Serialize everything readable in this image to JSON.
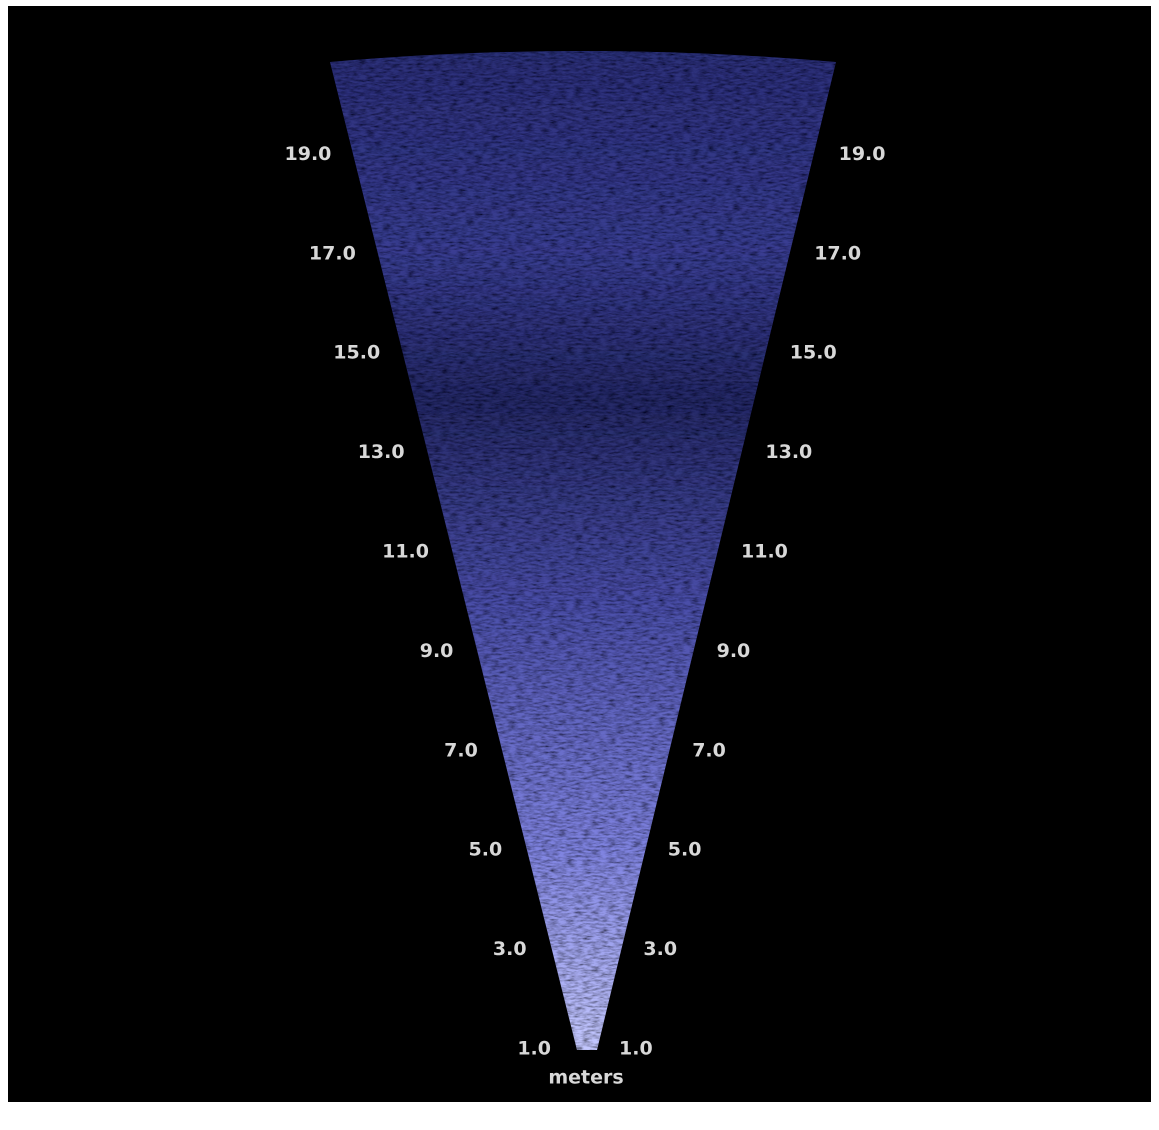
{
  "range_labels": {
    "left": [
      "1.0",
      "3.0",
      "5.0",
      "7.0",
      "9.0",
      "11.0",
      "13.0",
      "15.0",
      "17.0",
      "19.0"
    ],
    "right": [
      "1.0",
      "3.0",
      "5.0",
      "7.0",
      "9.0",
      "11.0",
      "13.0",
      "15.0",
      "17.0",
      "19.0"
    ]
  },
  "unit_label": "meters"
}
